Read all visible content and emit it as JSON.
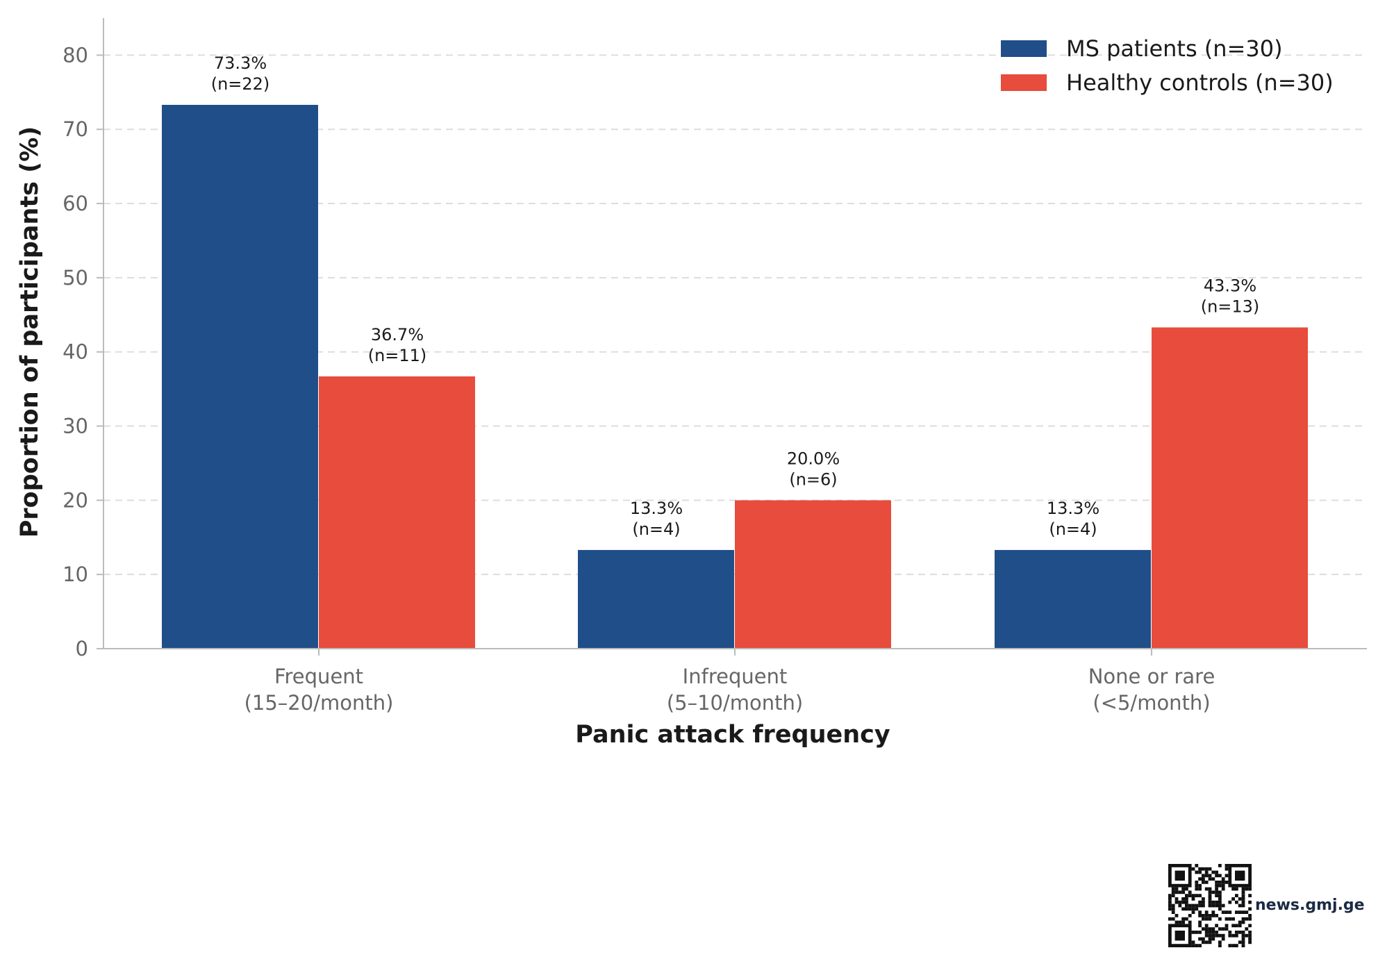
{
  "chart_data": {
    "type": "bar",
    "categories": [
      [
        "Frequent",
        "(15–20/month)"
      ],
      [
        "Infrequent",
        "(5–10/month)"
      ],
      [
        "None or rare",
        "(<5/month)"
      ]
    ],
    "series": [
      {
        "name": "MS patients (n=30)",
        "color": "#1f4e89",
        "values": [
          73.3,
          13.3,
          13.3
        ],
        "labels": [
          [
            "73.3%",
            "(n=22)"
          ],
          [
            "13.3%",
            "(n=4)"
          ],
          [
            "13.3%",
            "(n=4)"
          ]
        ]
      },
      {
        "name": "Healthy controls (n=30)",
        "color": "#e74c3c",
        "values": [
          36.7,
          20.0,
          43.3
        ],
        "labels": [
          [
            "36.7%",
            "(n=11)"
          ],
          [
            "20.0%",
            "(n=6)"
          ],
          [
            "43.3%",
            "(n=13)"
          ]
        ]
      }
    ],
    "xlabel": "Panic attack frequency",
    "ylabel": "Proportion of participants (%)",
    "ylim": [
      0,
      85
    ],
    "yticks": [
      0,
      10,
      20,
      30,
      40,
      50,
      60,
      70,
      80
    ],
    "grid": "horizontal dashed",
    "legend_position": "top-right"
  },
  "footer": {
    "site": "news.gmj.ge"
  }
}
